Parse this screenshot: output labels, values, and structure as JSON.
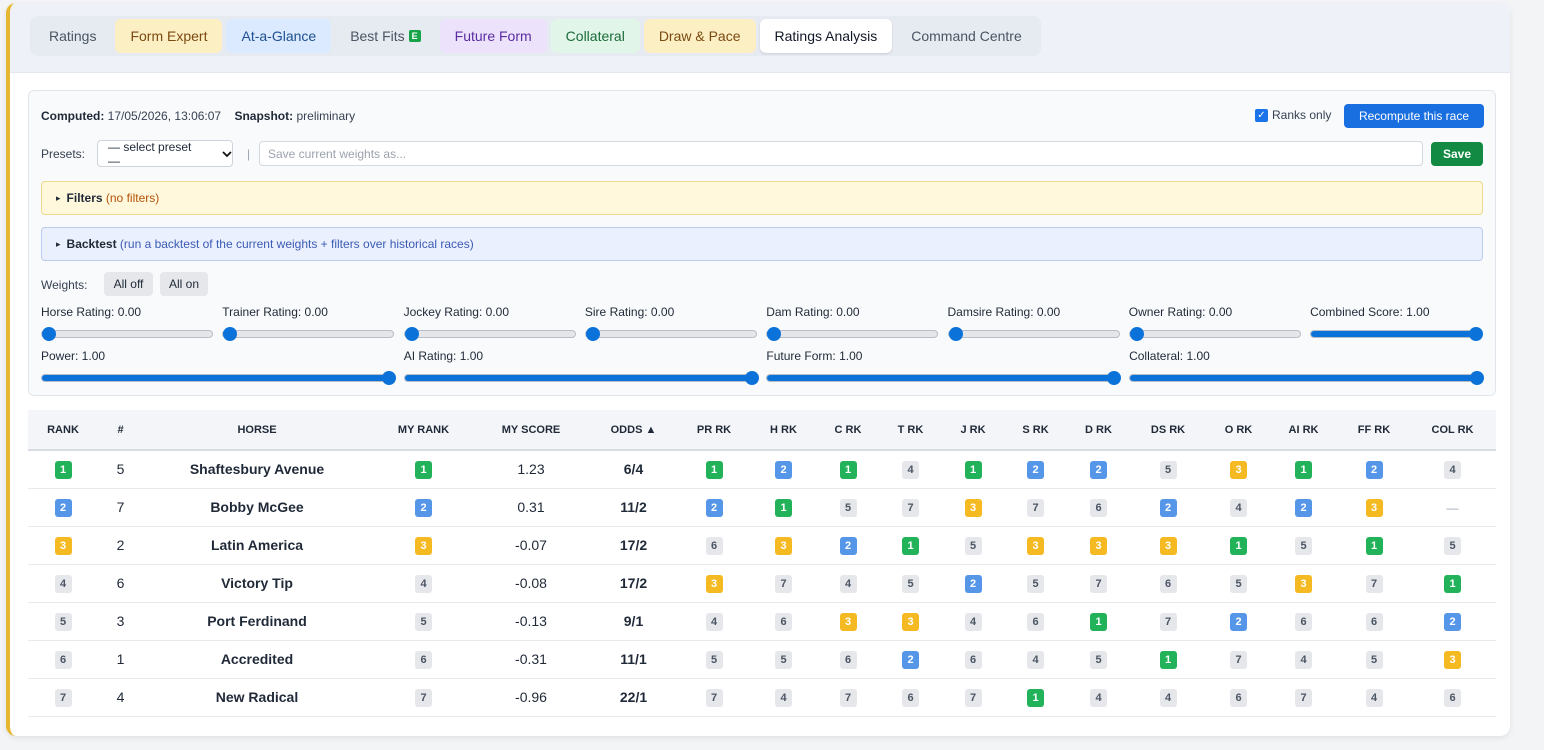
{
  "tabs": [
    {
      "label": "Ratings",
      "bg": "transparent",
      "color": "#4b5563"
    },
    {
      "label": "Form Expert",
      "bg": "#fdefc4",
      "color": "#7a4a10"
    },
    {
      "label": "At-a-Glance",
      "bg": "#dbeafe",
      "color": "#1d4f91"
    },
    {
      "label": "Best Fits",
      "bg": "transparent",
      "color": "#4b5563",
      "badge": "E"
    },
    {
      "label": "Future Form",
      "bg": "#ece2fb",
      "color": "#5b2ca0"
    },
    {
      "label": "Collateral",
      "bg": "#e1f6e8",
      "color": "#1b6b3a"
    },
    {
      "label": "Draw & Pace",
      "bg": "#fdefc4",
      "color": "#7a4a10"
    },
    {
      "label": "Ratings Analysis",
      "bg": "#ffffff",
      "color": "#111827",
      "active": true
    },
    {
      "label": "Command Centre",
      "bg": "transparent",
      "color": "#4b5563"
    }
  ],
  "toolbar": {
    "computed_label": "Computed:",
    "computed_value": "17/05/2026, 13:06:07",
    "snapshot_label": "Snapshot:",
    "snapshot_value": "preliminary",
    "ranks_only_label": "Ranks only",
    "ranks_only_checked": true,
    "recompute_label": "Recompute this race"
  },
  "presets": {
    "label": "Presets:",
    "select_value": "— select preset —",
    "separator": "|",
    "save_placeholder": "Save current weights as...",
    "save_label": "Save"
  },
  "filters": {
    "title": "Filters",
    "note": "(no filters)",
    "arrow": "▸"
  },
  "backtest": {
    "title": "Backtest",
    "note": "(run a backtest of the current weights + filters over historical races)",
    "arrow": "▸"
  },
  "weights": {
    "label": "Weights:",
    "all_off": "All off",
    "all_on": "All on",
    "row1": [
      {
        "label": "Horse Rating: 0.00",
        "value": 0.0
      },
      {
        "label": "Trainer Rating: 0.00",
        "value": 0.0
      },
      {
        "label": "Jockey Rating: 0.00",
        "value": 0.0
      },
      {
        "label": "Sire Rating: 0.00",
        "value": 0.0
      },
      {
        "label": "Dam Rating: 0.00",
        "value": 0.0
      },
      {
        "label": "Damsire Rating: 0.00",
        "value": 0.0
      },
      {
        "label": "Owner Rating: 0.00",
        "value": 0.0
      },
      {
        "label": "Combined Score: 1.00",
        "value": 1.0
      }
    ],
    "row2": [
      {
        "label": "Power: 1.00",
        "value": 1.0
      },
      {
        "label": "AI Rating: 1.00",
        "value": 1.0
      },
      {
        "label": "Future Form: 1.00",
        "value": 1.0
      },
      {
        "label": "Collateral: 1.00",
        "value": 1.0
      }
    ]
  },
  "table": {
    "headers": [
      "RANK",
      "#",
      "HORSE",
      "MY RANK",
      "MY SCORE",
      "ODDS ▲",
      "PR RK",
      "H RK",
      "C RK",
      "T RK",
      "J RK",
      "S RK",
      "D RK",
      "DS RK",
      "O RK",
      "AI RK",
      "FF RK",
      "COL RK"
    ],
    "rows": [
      {
        "rank": "1",
        "num": "5",
        "horse": "Shaftesbury Avenue",
        "my_rank": "1",
        "my_score": "1.23",
        "odds": "6/4",
        "ranks": [
          "1",
          "2",
          "1",
          "4",
          "1",
          "2",
          "2",
          "5",
          "3",
          "1",
          "2",
          "4"
        ]
      },
      {
        "rank": "2",
        "num": "7",
        "horse": "Bobby McGee",
        "my_rank": "2",
        "my_score": "0.31",
        "odds": "11/2",
        "ranks": [
          "2",
          "1",
          "5",
          "7",
          "3",
          "7",
          "6",
          "2",
          "4",
          "2",
          "3",
          "—"
        ]
      },
      {
        "rank": "3",
        "num": "2",
        "horse": "Latin America",
        "my_rank": "3",
        "my_score": "-0.07",
        "odds": "17/2",
        "ranks": [
          "6",
          "3",
          "2",
          "1",
          "5",
          "3",
          "3",
          "3",
          "1",
          "5",
          "1",
          "5"
        ]
      },
      {
        "rank": "4",
        "num": "6",
        "horse": "Victory Tip",
        "my_rank": "4",
        "my_score": "-0.08",
        "odds": "17/2",
        "ranks": [
          "3",
          "7",
          "4",
          "5",
          "2",
          "5",
          "7",
          "6",
          "5",
          "3",
          "7",
          "1"
        ]
      },
      {
        "rank": "5",
        "num": "3",
        "horse": "Port Ferdinand",
        "my_rank": "5",
        "my_score": "-0.13",
        "odds": "9/1",
        "ranks": [
          "4",
          "6",
          "3",
          "3",
          "4",
          "6",
          "1",
          "7",
          "2",
          "6",
          "6",
          "2"
        ]
      },
      {
        "rank": "6",
        "num": "1",
        "horse": "Accredited",
        "my_rank": "6",
        "my_score": "-0.31",
        "odds": "11/1",
        "ranks": [
          "5",
          "5",
          "6",
          "2",
          "6",
          "4",
          "5",
          "1",
          "7",
          "4",
          "5",
          "3"
        ]
      },
      {
        "rank": "7",
        "num": "4",
        "horse": "New Radical",
        "my_rank": "7",
        "my_score": "-0.96",
        "odds": "22/1",
        "ranks": [
          "7",
          "4",
          "7",
          "6",
          "7",
          "1",
          "4",
          "4",
          "6",
          "7",
          "4",
          "6"
        ]
      }
    ]
  },
  "colors": {
    "rank1": "#22b35a",
    "rank2": "#5596e8",
    "rank3": "#f5b921",
    "rank_other": "#e5e7eb",
    "accent": "#1a6fe0",
    "save": "#138a44"
  }
}
